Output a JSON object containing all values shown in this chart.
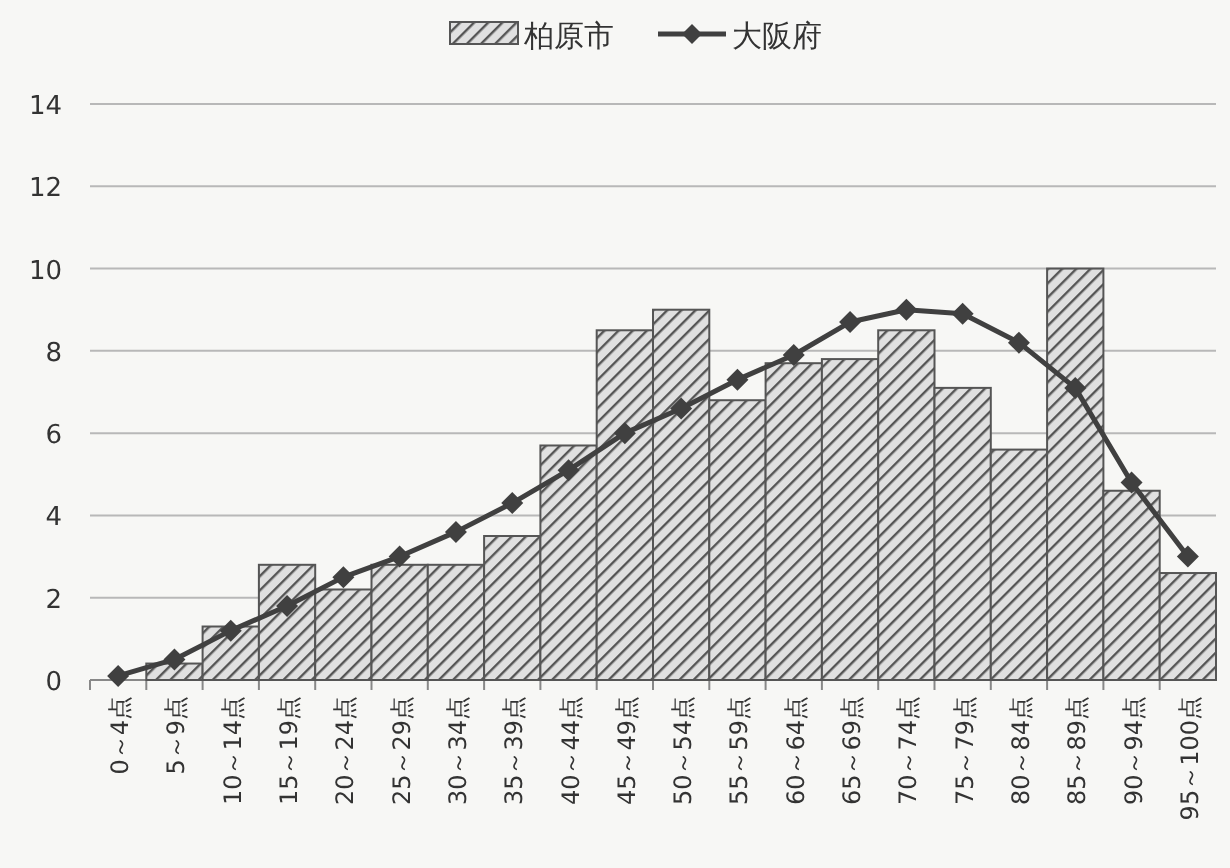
{
  "chart_data": {
    "type": "bar",
    "categories": [
      "0～4点",
      "5～9点",
      "10～14点",
      "15～19点",
      "20～24点",
      "25～29点",
      "30～34点",
      "35～39点",
      "40～44点",
      "45～49点",
      "50～54点",
      "55～59点",
      "60～64点",
      "65～69点",
      "70～74点",
      "75～79点",
      "80～84点",
      "85～89点",
      "90～94点",
      "95～100点"
    ],
    "series": [
      {
        "name": "柏原市",
        "color": "#555555",
        "values": [
          0,
          0.4,
          1.3,
          2.8,
          2.2,
          2.8,
          2.8,
          3.5,
          5.7,
          8.5,
          9.0,
          6.8,
          7.7,
          7.8,
          8.5,
          7.1,
          5.6,
          10.0,
          4.6,
          2.6
        ]
      },
      {
        "name": "大阪府",
        "type": "line",
        "color": "#404040",
        "marker": "diamond",
        "values": [
          0.1,
          0.5,
          1.2,
          1.8,
          2.5,
          3.0,
          3.6,
          4.3,
          5.1,
          6.0,
          6.6,
          7.3,
          7.9,
          8.7,
          9.0,
          8.9,
          8.2,
          7.1,
          4.8,
          3.0
        ]
      }
    ],
    "ylim": [
      0,
      14
    ],
    "yticks": [
      0,
      2,
      4,
      6,
      8,
      10,
      12,
      14
    ],
    "grid": "y",
    "legend": "top"
  }
}
